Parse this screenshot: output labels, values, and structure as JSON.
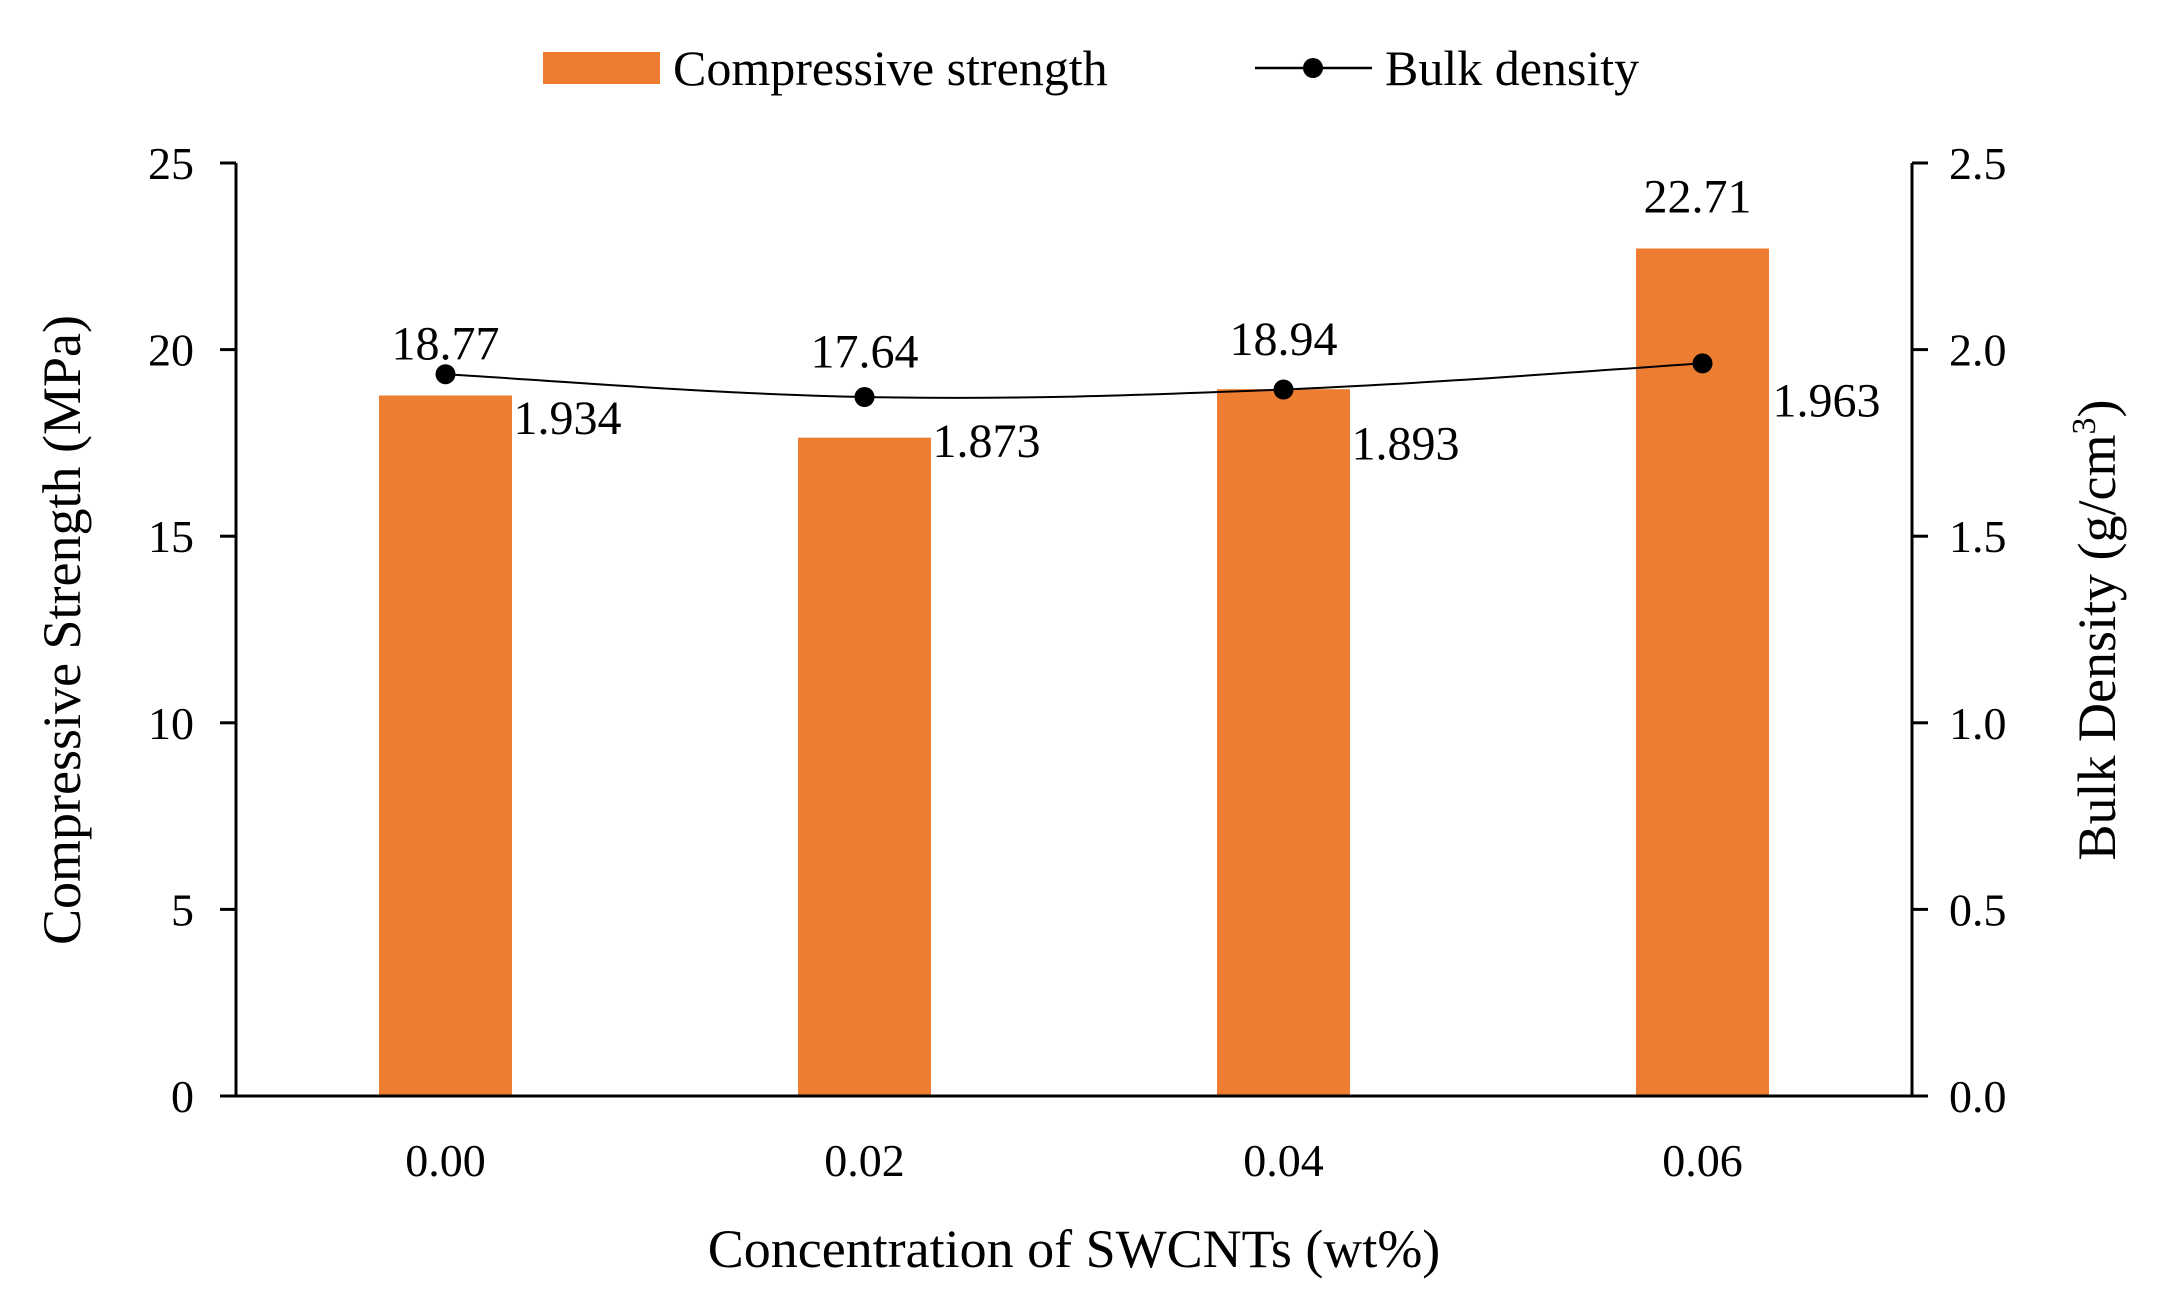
{
  "colors": {
    "bar": "#ED7D31",
    "line": "#000000",
    "axis": "#000000"
  },
  "legend": {
    "bar_label": "Compressive strength",
    "line_label": "Bulk density"
  },
  "chart_data": {
    "type": "bar+line",
    "categories": [
      "0.00",
      "0.02",
      "0.04",
      "0.06"
    ],
    "series": [
      {
        "name": "Compressive strength",
        "type": "bar",
        "axis": "left",
        "values": [
          18.77,
          17.64,
          18.94,
          22.71
        ],
        "labels": [
          "18.77",
          "17.64",
          "18.94",
          "22.71"
        ]
      },
      {
        "name": "Bulk density",
        "type": "line",
        "axis": "right",
        "values": [
          1.934,
          1.873,
          1.893,
          1.963
        ],
        "labels": [
          "1.934",
          "1.873",
          "1.893",
          "1.963"
        ]
      }
    ],
    "xlabel": "Concentration of SWCNTs (wt%)",
    "ylabel_left": "Compressive Strength (MPa)",
    "ylabel_right_main": "Bulk Density (g/cm",
    "ylabel_right_sup": "3",
    "ylabel_right_close": ")",
    "ylim_left": [
      0,
      25
    ],
    "ylim_right": [
      0,
      2.5
    ],
    "yticks_left": [
      "0",
      "5",
      "10",
      "15",
      "20",
      "25"
    ],
    "yticks_right": [
      "0.0",
      "0.5",
      "1.0",
      "1.5",
      "2.0",
      "2.5"
    ],
    "grid": false,
    "legend_position": "top-center"
  }
}
